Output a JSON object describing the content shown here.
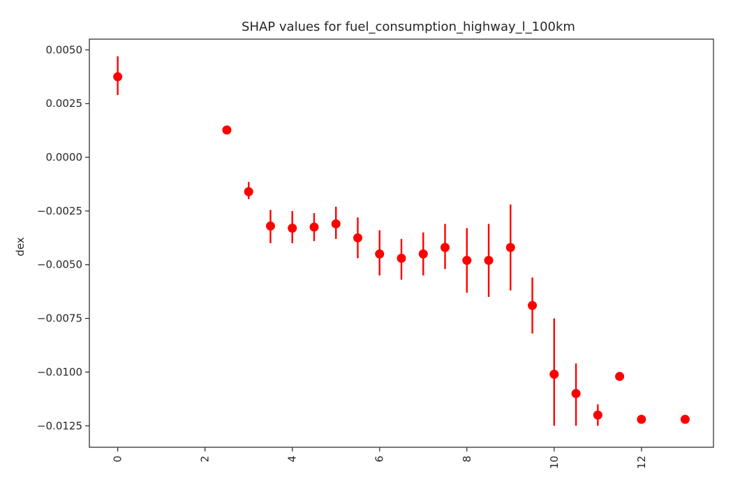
{
  "chart_data": {
    "type": "scatter",
    "title": "SHAP values for fuel_consumption_highway_l_100km",
    "xlabel": "",
    "ylabel": "dex",
    "xlim": [
      -0.65,
      13.65
    ],
    "ylim": [
      -0.0135,
      0.0055
    ],
    "xticks": [
      0,
      2,
      4,
      6,
      8,
      10,
      12
    ],
    "xtick_labels": [
      "0",
      "2",
      "4",
      "6",
      "8",
      "10",
      "12"
    ],
    "xtick_rotation": 90,
    "yticks": [
      0.005,
      0.0025,
      0.0,
      -0.0025,
      -0.005,
      -0.0075,
      -0.01,
      -0.0125
    ],
    "ytick_labels": [
      "0.0050",
      "0.0025",
      "0.0000",
      "−0.0025",
      "−0.0050",
      "−0.0075",
      "−0.0100",
      "−0.0125"
    ],
    "grid": false,
    "color": "#ff0000",
    "points": [
      {
        "x": 0,
        "y": 0.00375,
        "lo": 0.0029,
        "hi": 0.0047
      },
      {
        "x": 2.5,
        "y": 0.00127,
        "lo": null,
        "hi": null
      },
      {
        "x": 3,
        "y": -0.0016,
        "lo": -0.00195,
        "hi": -0.00115
      },
      {
        "x": 3.5,
        "y": -0.0032,
        "lo": -0.004,
        "hi": -0.00245
      },
      {
        "x": 4,
        "y": -0.0033,
        "lo": -0.004,
        "hi": -0.0025
      },
      {
        "x": 4.5,
        "y": -0.00325,
        "lo": -0.0039,
        "hi": -0.0026
      },
      {
        "x": 5,
        "y": -0.0031,
        "lo": -0.0038,
        "hi": -0.0023
      },
      {
        "x": 5.5,
        "y": -0.00375,
        "lo": -0.0047,
        "hi": -0.0028
      },
      {
        "x": 6,
        "y": -0.0045,
        "lo": -0.0055,
        "hi": -0.0034
      },
      {
        "x": 6.5,
        "y": -0.0047,
        "lo": -0.0057,
        "hi": -0.0038
      },
      {
        "x": 7,
        "y": -0.0045,
        "lo": -0.0055,
        "hi": -0.0035
      },
      {
        "x": 7.5,
        "y": -0.0042,
        "lo": -0.0052,
        "hi": -0.0031
      },
      {
        "x": 8,
        "y": -0.0048,
        "lo": -0.0063,
        "hi": -0.0033
      },
      {
        "x": 8.5,
        "y": -0.0048,
        "lo": -0.0065,
        "hi": -0.0031
      },
      {
        "x": 9,
        "y": -0.0042,
        "lo": -0.0062,
        "hi": -0.0022
      },
      {
        "x": 9.5,
        "y": -0.0069,
        "lo": -0.0082,
        "hi": -0.0056
      },
      {
        "x": 10,
        "y": -0.0101,
        "lo": -0.0125,
        "hi": -0.0075
      },
      {
        "x": 10.5,
        "y": -0.011,
        "lo": -0.0125,
        "hi": -0.0096
      },
      {
        "x": 11,
        "y": -0.012,
        "lo": -0.0125,
        "hi": -0.0115
      },
      {
        "x": 11.5,
        "y": -0.0102,
        "lo": null,
        "hi": null
      },
      {
        "x": 12,
        "y": -0.0122,
        "lo": null,
        "hi": null
      },
      {
        "x": 13,
        "y": -0.0122,
        "lo": null,
        "hi": null
      }
    ]
  }
}
